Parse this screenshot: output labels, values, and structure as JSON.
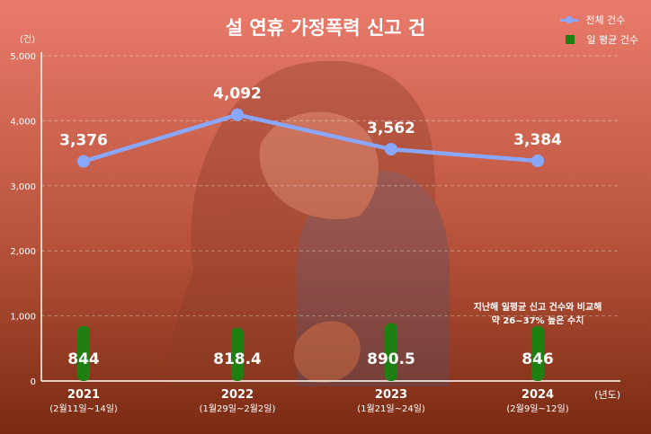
{
  "chart_data": {
    "type": "line",
    "title": "설 연휴 가정폭력 신고 건",
    "y_unit": "(건)",
    "x_unit": "(년도)",
    "ylim": [
      0,
      5000
    ],
    "yticks": [
      "0",
      "1,000",
      "2,000",
      "3,000",
      "4,000",
      "5,000"
    ],
    "categories": [
      "2021",
      "2022",
      "2023",
      "2024"
    ],
    "sublabels": [
      "(2월11일~14일)",
      "(1월29일~2월2일)",
      "(1월21일~24일)",
      "(2월9일~12일)"
    ],
    "series": [
      {
        "name": "전체 건수",
        "kind": "line",
        "color": "#8aa7ff",
        "values": [
          3376,
          4092,
          3562,
          3384
        ],
        "labels": [
          "3,376",
          "4,092",
          "3,562",
          "3,384"
        ]
      },
      {
        "name": "일 평균 건수",
        "kind": "bar",
        "color": "#1f7f12",
        "values": [
          844,
          818.4,
          890.5,
          846
        ],
        "labels": [
          "844",
          "818.4",
          "890.5",
          "846"
        ]
      }
    ],
    "annotation": [
      "지난해 일평균 신고 건수와 비교해",
      "약 26~37% 높은 수치"
    ],
    "grid": true
  }
}
